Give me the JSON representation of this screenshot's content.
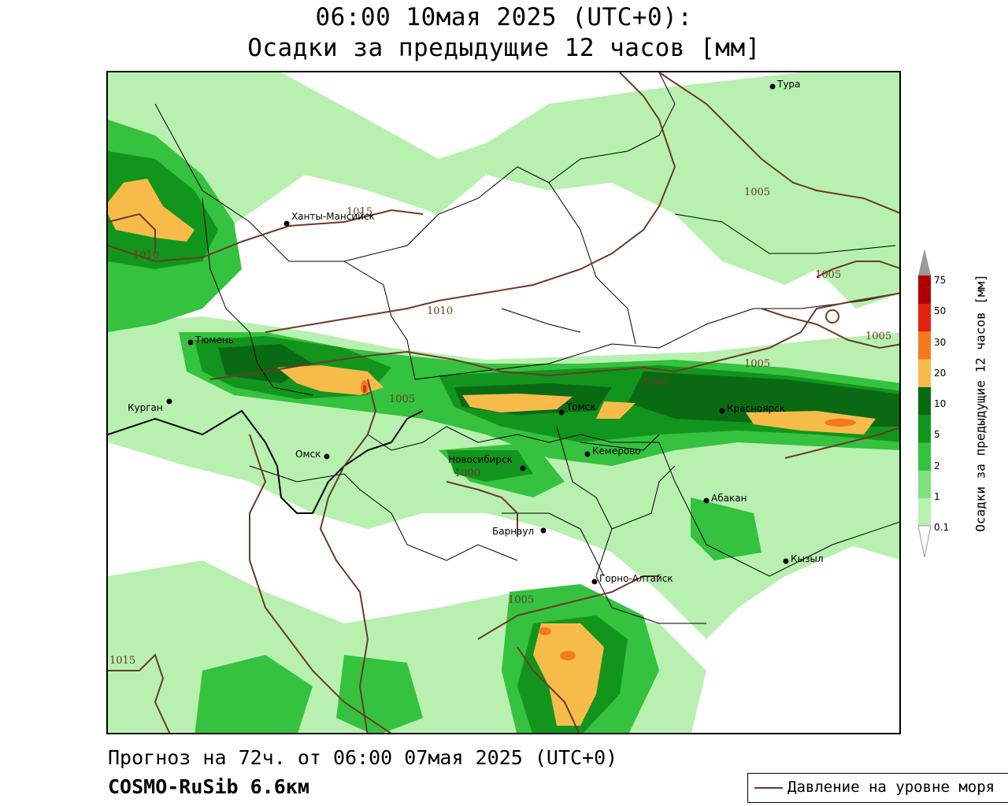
{
  "title": {
    "line1": "06:00 10мая 2025 (UTC+0):",
    "line2": "Осадки за предыдущие 12 часов [мм]"
  },
  "footer": {
    "forecast": "Прогноз на 72ч. от 06:00 07мая 2025 (UTC+0)",
    "model": "COSMO-RuSib 6.6км"
  },
  "legend": {
    "pressure_label": "Давление на уровне моря",
    "pressure_color": "#6b3a2a"
  },
  "colorbar": {
    "title": "Осадки за предыдущие 12 часов [мм]",
    "ticks": [
      "0.1",
      "1",
      "2",
      "5",
      "10",
      "20",
      "30",
      "50",
      "75"
    ],
    "colors": [
      "#b8f0b0",
      "#7fe07f",
      "#35c23e",
      "#12951c",
      "#0a6a14",
      "#f7bb4a",
      "#f57a1d",
      "#e3220e",
      "#b00000",
      "#9a9a9a"
    ]
  },
  "cities": [
    {
      "name": "Тура"
    },
    {
      "name": "Ханты-Мансийск"
    },
    {
      "name": "Тюмень"
    },
    {
      "name": "Курган"
    },
    {
      "name": "Омск"
    },
    {
      "name": "Томск"
    },
    {
      "name": "Красноярск"
    },
    {
      "name": "Новосибирск"
    },
    {
      "name": "Кемерово"
    },
    {
      "name": "Абакан"
    },
    {
      "name": "Барнаул"
    },
    {
      "name": "Кызыл"
    },
    {
      "name": "Горно-Алтайск"
    }
  ],
  "isobar_labels": [
    "1015",
    "1010",
    "1010",
    "1005",
    "1005",
    "1005",
    "1005",
    "1005",
    "1000",
    "1005",
    "1015",
    "1005"
  ]
}
